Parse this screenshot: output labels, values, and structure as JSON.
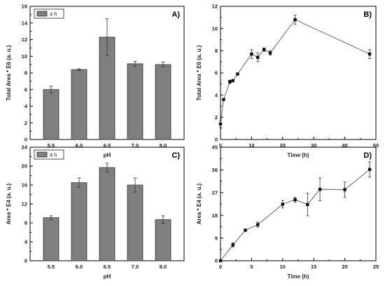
{
  "chart_data": [
    {
      "id": "A",
      "panel_label": "A)",
      "type": "bar",
      "categories": [
        "5.5",
        "6.0",
        "6.5",
        "7.0",
        "8.0"
      ],
      "series": [
        {
          "name": "4 h",
          "values": [
            6.0,
            8.4,
            12.3,
            9.1,
            9.0
          ],
          "errors": [
            0.4,
            0.1,
            2.2,
            0.3,
            0.3
          ]
        }
      ],
      "xlabel": "pH",
      "ylabel": "Total Area * E6 (a. u.)",
      "ylim": [
        0,
        16
      ],
      "yticks": [
        0,
        2,
        4,
        6,
        8,
        10,
        12,
        14,
        16
      ],
      "legend": "top-left",
      "grid": false
    },
    {
      "id": "B",
      "panel_label": "B)",
      "type": "line",
      "series": [
        {
          "x": [
            0,
            1,
            3,
            4,
            5.5,
            10,
            12,
            14,
            16,
            24,
            48
          ],
          "values": [
            1.4,
            3.6,
            5.2,
            5.3,
            5.9,
            7.7,
            7.4,
            8.1,
            7.8,
            10.8,
            7.7
          ],
          "errors": [
            0.3,
            0.1,
            0.15,
            0.1,
            0.1,
            0.4,
            0.4,
            0.15,
            0.2,
            0.4,
            0.4
          ]
        }
      ],
      "xlabel": "Time (h)",
      "ylabel": "Total Area * E6 (a. u.)",
      "xlim": [
        0,
        50
      ],
      "xticks": [
        0,
        10,
        20,
        30,
        40,
        50
      ],
      "ylim": [
        0,
        12
      ],
      "yticks": [
        0,
        2,
        4,
        6,
        8,
        10,
        12
      ],
      "grid": false
    },
    {
      "id": "C",
      "panel_label": "C)",
      "type": "bar",
      "categories": [
        "5.5",
        "6.0",
        "6.5",
        "7.0",
        "8.0"
      ],
      "series": [
        {
          "name": "4 h",
          "values": [
            9.1,
            16.5,
            19.7,
            16.0,
            8.7
          ],
          "errors": [
            0.4,
            1.0,
            0.9,
            1.5,
            0.8
          ]
        }
      ],
      "xlabel": "pH",
      "ylabel": "Area * E4 (a. u.)",
      "ylim": [
        0,
        24
      ],
      "yticks": [
        0,
        4,
        8,
        12,
        16,
        20,
        24
      ],
      "legend": "top-left",
      "grid": false
    },
    {
      "id": "D",
      "panel_label": "D)",
      "type": "line",
      "series": [
        {
          "x": [
            0,
            2,
            4,
            6,
            10,
            12,
            14,
            16,
            20,
            24
          ],
          "values": [
            0,
            6.3,
            12.1,
            14.3,
            22.4,
            24.2,
            22.3,
            28.3,
            28.2,
            36.2
          ],
          "errors": [
            0,
            0.8,
            0.5,
            1.0,
            1.5,
            1.0,
            4.5,
            4.5,
            3.0,
            3.0
          ]
        }
      ],
      "xlabel": "Time (h)",
      "ylabel": "Area * E4 (a. u.)",
      "xlim": [
        0,
        25
      ],
      "xticks": [
        0,
        5,
        10,
        15,
        20,
        25
      ],
      "ylim": [
        0,
        45
      ],
      "yticks": [
        0,
        9,
        18,
        27,
        36,
        45
      ],
      "grid": false
    }
  ]
}
